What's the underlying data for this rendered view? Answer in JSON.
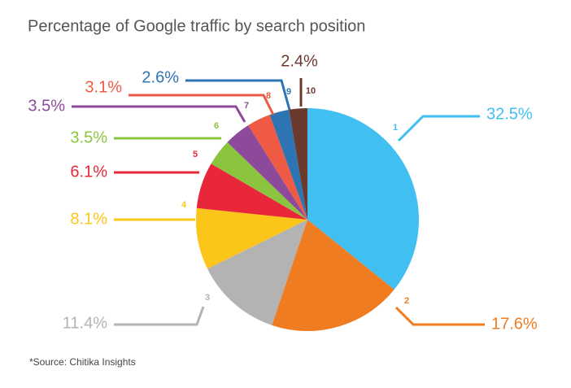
{
  "chart_data": {
    "type": "pie",
    "title": "Percentage of Google traffic by search position",
    "categories": [
      "1",
      "2",
      "3",
      "4",
      "5",
      "6",
      "7",
      "8",
      "9",
      "10"
    ],
    "values": [
      32.5,
      17.6,
      11.4,
      8.1,
      6.1,
      3.5,
      3.5,
      3.1,
      2.6,
      2.4
    ],
    "value_labels": [
      "32.5%",
      "17.6%",
      "11.4%",
      "8.1%",
      "6.1%",
      "3.5%",
      "3.5%",
      "3.1%",
      "2.6%",
      "2.4%"
    ],
    "colors": [
      "#41bff0",
      "#f07c22",
      "#b3b3b3",
      "#fcc51a",
      "#e8283a",
      "#8bc53f",
      "#8e4a9a",
      "#ef5a45",
      "#2f74b2",
      "#6b3a2e"
    ],
    "note": "*Source: Chitika Insights"
  }
}
